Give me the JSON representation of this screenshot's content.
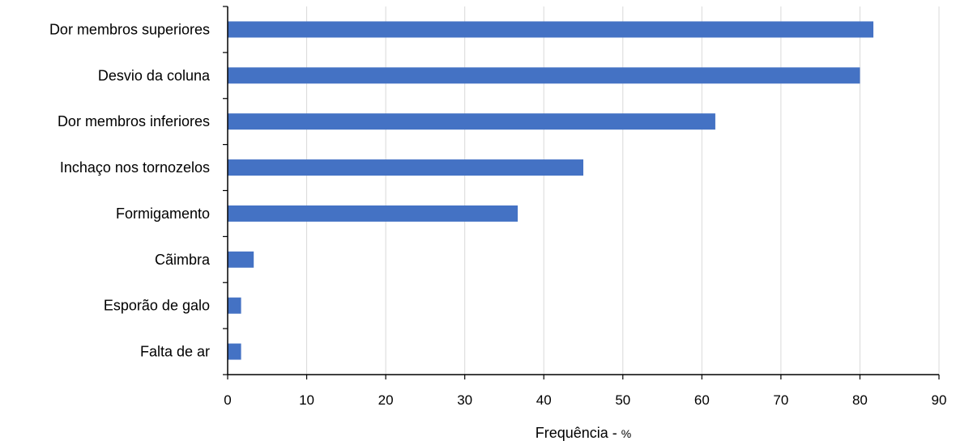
{
  "chart_data": {
    "type": "bar",
    "orientation": "horizontal",
    "categories": [
      "Dor membros superiores",
      "Desvio da coluna",
      "Dor membros inferiores",
      "Inchaço nos tornozelos",
      "Formigamento",
      "Cãimbra",
      "Esporão de galo",
      "Falta de ar"
    ],
    "values": [
      81.7,
      80.0,
      61.7,
      45.0,
      36.7,
      3.3,
      1.7,
      1.7
    ],
    "xlabel": "Frequência - ",
    "xlabel_unit": "%",
    "xlim": [
      0,
      90
    ],
    "xticks": [
      "0",
      "10",
      "20",
      "30",
      "40",
      "50",
      "60",
      "70",
      "80",
      "90"
    ],
    "grid": "vertical",
    "legend": "none",
    "bar_color": "#4472c4",
    "grid_color": "#d9d9d9"
  }
}
